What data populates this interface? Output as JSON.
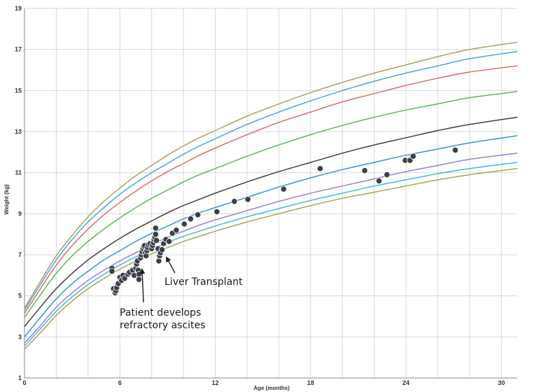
{
  "chart_data": {
    "type": "scatter",
    "xlabel": "Age (months)",
    "ylabel": "Weight (kg)",
    "xlim": [
      0,
      31
    ],
    "ylim": [
      1,
      19
    ],
    "x_ticks": [
      0,
      6,
      12,
      18,
      24,
      30
    ],
    "y_ticks": [
      1,
      3,
      5,
      7,
      9,
      11,
      13,
      15,
      17,
      19
    ],
    "grid": true,
    "curve_x": [
      0,
      1,
      2,
      3,
      4,
      5,
      6,
      7,
      8,
      9,
      10,
      11,
      12,
      14,
      16,
      18,
      20,
      22,
      24,
      26,
      28,
      31
    ],
    "series": [
      {
        "color": "#a7a655",
        "values": [
          2.4,
          3.2,
          4.05,
          4.75,
          5.35,
          5.85,
          6.3,
          6.7,
          7.05,
          7.35,
          7.65,
          7.9,
          8.15,
          8.6,
          9.0,
          9.4,
          9.75,
          10.05,
          10.35,
          10.65,
          10.9,
          11.2
        ]
      },
      {
        "color": "#4cb6d6",
        "values": [
          2.55,
          3.4,
          4.25,
          4.95,
          5.55,
          6.05,
          6.5,
          6.9,
          7.25,
          7.6,
          7.9,
          8.15,
          8.4,
          8.85,
          9.25,
          9.65,
          10.0,
          10.35,
          10.65,
          10.95,
          11.2,
          11.5
        ]
      },
      {
        "color": "#9b7fd4",
        "values": [
          2.7,
          3.55,
          4.45,
          5.15,
          5.75,
          6.25,
          6.7,
          7.1,
          7.5,
          7.85,
          8.15,
          8.45,
          8.7,
          9.15,
          9.6,
          10.0,
          10.35,
          10.7,
          11.05,
          11.35,
          11.65,
          11.95
        ]
      },
      {
        "color": "#3d8fd9",
        "values": [
          3.0,
          3.95,
          4.85,
          5.6,
          6.2,
          6.75,
          7.2,
          7.65,
          8.05,
          8.4,
          8.75,
          9.05,
          9.3,
          9.8,
          10.3,
          10.75,
          11.15,
          11.5,
          11.85,
          12.15,
          12.45,
          12.8
        ]
      },
      {
        "color": "#3f3f3f",
        "values": [
          3.5,
          4.45,
          5.35,
          6.1,
          6.75,
          7.3,
          7.8,
          8.25,
          8.65,
          9.05,
          9.4,
          9.7,
          10.0,
          10.55,
          11.05,
          11.5,
          11.95,
          12.35,
          12.7,
          13.05,
          13.35,
          13.7
        ]
      },
      {
        "color": "#5cb85c",
        "values": [
          3.95,
          5.05,
          6.1,
          6.95,
          7.65,
          8.25,
          8.8,
          9.3,
          9.75,
          10.15,
          10.55,
          10.9,
          11.2,
          11.8,
          12.35,
          12.85,
          13.3,
          13.7,
          14.05,
          14.35,
          14.65,
          14.95
        ]
      },
      {
        "color": "#d96b6b",
        "values": [
          4.15,
          5.35,
          6.5,
          7.45,
          8.25,
          8.95,
          9.55,
          10.1,
          10.6,
          11.05,
          11.45,
          11.85,
          12.2,
          12.85,
          13.45,
          13.95,
          14.45,
          14.85,
          15.25,
          15.6,
          15.9,
          16.2
        ]
      },
      {
        "color": "#4aa8d8",
        "values": [
          4.3,
          5.55,
          6.75,
          7.75,
          8.6,
          9.3,
          9.95,
          10.5,
          11.0,
          11.45,
          11.9,
          12.3,
          12.65,
          13.35,
          13.95,
          14.5,
          15.0,
          15.45,
          15.85,
          16.2,
          16.55,
          16.9
        ]
      },
      {
        "color": "#a9a35a",
        "values": [
          4.4,
          5.7,
          6.95,
          7.95,
          8.85,
          9.6,
          10.25,
          10.85,
          11.35,
          11.85,
          12.3,
          12.7,
          13.05,
          13.75,
          14.35,
          14.9,
          15.4,
          15.85,
          16.25,
          16.65,
          17.0,
          17.35
        ]
      }
    ],
    "points": [
      [
        5.5,
        6.35
      ],
      [
        5.5,
        6.2
      ],
      [
        5.6,
        5.35
      ],
      [
        5.7,
        5.15
      ],
      [
        5.75,
        5.25
      ],
      [
        5.8,
        5.4
      ],
      [
        5.9,
        5.6
      ],
      [
        6.0,
        5.9
      ],
      [
        6.1,
        5.75
      ],
      [
        6.2,
        6.0
      ],
      [
        6.3,
        5.85
      ],
      [
        6.5,
        6.05
      ],
      [
        6.6,
        6.15
      ],
      [
        6.8,
        6.25
      ],
      [
        6.9,
        6.0
      ],
      [
        7.0,
        6.35
      ],
      [
        7.05,
        6.55
      ],
      [
        7.1,
        6.7
      ],
      [
        7.15,
        6.25
      ],
      [
        7.2,
        6.05
      ],
      [
        7.2,
        5.8
      ],
      [
        7.3,
        6.85
      ],
      [
        7.35,
        7.0
      ],
      [
        7.4,
        7.15
      ],
      [
        7.45,
        7.3
      ],
      [
        7.5,
        7.4
      ],
      [
        7.55,
        7.45
      ],
      [
        7.6,
        7.1
      ],
      [
        7.65,
        6.95
      ],
      [
        7.7,
        7.2
      ],
      [
        7.75,
        7.35
      ],
      [
        7.8,
        7.5
      ],
      [
        7.9,
        7.55
      ],
      [
        8.0,
        7.3
      ],
      [
        8.05,
        7.45
      ],
      [
        8.1,
        7.6
      ],
      [
        8.15,
        7.75
      ],
      [
        8.2,
        7.85
      ],
      [
        8.25,
        8.0
      ],
      [
        8.25,
        8.3
      ],
      [
        8.3,
        7.7
      ],
      [
        8.4,
        7.3
      ],
      [
        8.45,
        6.7
      ],
      [
        8.5,
        6.95
      ],
      [
        8.55,
        7.1
      ],
      [
        8.65,
        7.25
      ],
      [
        8.75,
        7.55
      ],
      [
        8.9,
        7.75
      ],
      [
        9.1,
        7.65
      ],
      [
        9.3,
        8.05
      ],
      [
        9.55,
        8.2
      ],
      [
        10.05,
        8.5
      ],
      [
        10.45,
        8.75
      ],
      [
        10.9,
        8.95
      ],
      [
        12.1,
        9.1
      ],
      [
        13.2,
        9.6
      ],
      [
        14.05,
        9.7
      ],
      [
        16.3,
        10.2
      ],
      [
        18.6,
        11.2
      ],
      [
        21.4,
        11.1
      ],
      [
        22.3,
        10.6
      ],
      [
        22.8,
        10.9
      ],
      [
        23.95,
        11.6
      ],
      [
        24.25,
        11.6
      ],
      [
        24.45,
        11.8
      ],
      [
        27.1,
        12.1
      ]
    ],
    "annotations": [
      {
        "text": "Liver Transplant",
        "arrow_to": [
          8.6,
          6.85
        ]
      },
      {
        "text": "Patient develops",
        "arrow_to": [
          7.3,
          5.9
        ]
      },
      {
        "text": "refractory ascites"
      }
    ]
  }
}
